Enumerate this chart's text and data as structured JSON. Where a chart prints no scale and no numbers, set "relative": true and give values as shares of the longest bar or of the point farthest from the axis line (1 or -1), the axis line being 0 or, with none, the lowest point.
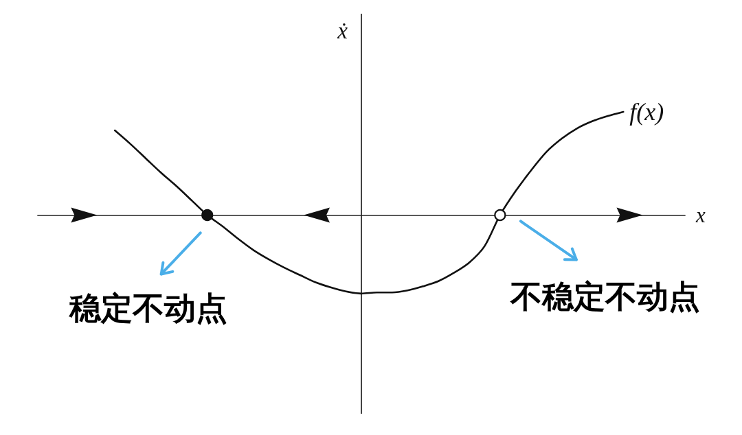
{
  "chart_data": {
    "type": "line",
    "relative": true,
    "xlabel": "x",
    "ylabel": "ẋ",
    "marker": "none",
    "line_style": "solid",
    "annotations": [
      "稳定不动点",
      "不稳定不动点"
    ],
    "categories": [
      null,
      null,
      null,
      null,
      null,
      null,
      null,
      null,
      null,
      null,
      null,
      null,
      null,
      null,
      null,
      null,
      null,
      null,
      null,
      null,
      null,
      null,
      null,
      null,
      null,
      null,
      null,
      null,
      null,
      null,
      null,
      null,
      null,
      null,
      null,
      null,
      null,
      null,
      null,
      null,
      null,
      null,
      null
    ],
    "series": [
      {
        "name": "f(x)",
        "color": "#111111",
        "values": [
          null,
          null,
          null,
          null,
          null,
          0.82,
          0.69,
          0.55,
          0.41,
          0.28,
          0.14,
          0,
          -0.11,
          -0.23,
          -0.34,
          -0.43,
          -0.51,
          -0.58,
          -0.65,
          -0.7,
          -0.74,
          -0.76,
          -0.75,
          -0.75,
          -0.73,
          -0.69,
          -0.64,
          -0.56,
          -0.46,
          -0.3,
          0,
          0.23,
          0.43,
          0.61,
          0.74,
          0.84,
          0.91,
          0.96,
          1,
          null,
          null,
          null,
          null
        ]
      },
      {
        "color": "#111111",
        "marker": "circle",
        "values": [
          null,
          null,
          null,
          null,
          null,
          null,
          null,
          null,
          null,
          null,
          null,
          0,
          null,
          null,
          null,
          null,
          null,
          null,
          null,
          null,
          null,
          null,
          null,
          null,
          null,
          null,
          null,
          null,
          null,
          null,
          null,
          null,
          null,
          null,
          null,
          null,
          null,
          null,
          null,
          null,
          null,
          null,
          null
        ]
      },
      {
        "color": "#ffffff",
        "marker": "circle",
        "values": [
          null,
          null,
          null,
          null,
          null,
          null,
          null,
          null,
          null,
          null,
          null,
          null,
          null,
          null,
          null,
          null,
          null,
          null,
          null,
          null,
          null,
          null,
          null,
          null,
          null,
          null,
          null,
          null,
          null,
          null,
          0,
          null,
          null,
          null,
          null,
          null,
          null,
          null,
          null,
          null,
          null,
          null,
          null
        ]
      }
    ]
  }
}
